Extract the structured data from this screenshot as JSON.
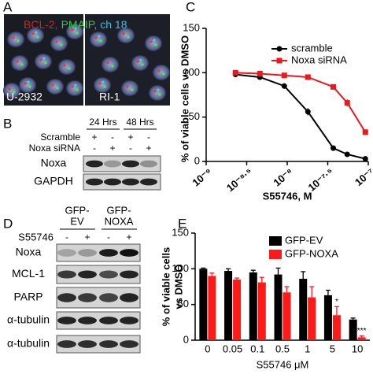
{
  "figure": {
    "A": {
      "label": "A",
      "title": [
        "BCL-2,",
        "PMAIP,",
        "ch 18"
      ],
      "images": [
        "U-2932",
        "RI-1"
      ]
    },
    "B": {
      "label": "B",
      "times": [
        "24 Hrs",
        "48 Hrs"
      ],
      "conditions": [
        {
          "name": "Scramble",
          "signs": [
            "+",
            "-",
            "+",
            "-"
          ]
        },
        {
          "name": "Noxa siRNA",
          "signs": [
            "-",
            "+",
            "-",
            "+"
          ]
        }
      ],
      "bands": [
        "Noxa",
        "GAPDH"
      ]
    },
    "D": {
      "label": "D",
      "groups": [
        [
          "GFP-",
          "EV"
        ],
        [
          "GFP-",
          "NOXA"
        ]
      ],
      "treatment": "S55746",
      "signs": [
        "-",
        "+",
        "-",
        "+"
      ],
      "bands": [
        "Noxa",
        "MCL-1",
        "PARP",
        "α-tubulin",
        "α-tubulin"
      ]
    }
  },
  "chart_data": [
    {
      "type": "line",
      "panel_label": "C",
      "ylabel": "% of viable cells vs DMSO",
      "xlabel": "S55746, M",
      "xscale": "log",
      "xlim": [
        1e-09,
        1e-07
      ],
      "xticks": [
        {
          "value": 1e-09,
          "label": "10⁻⁹"
        },
        {
          "value": 3.16227766e-09,
          "label": "10⁻⁸·⁵"
        },
        {
          "value": 1e-08,
          "label": "10⁻⁸"
        },
        {
          "value": 3.16227766e-08,
          "label": "10⁻⁷·⁵"
        },
        {
          "value": 1e-07,
          "label": "10⁻⁷"
        }
      ],
      "ylim": [
        0,
        150
      ],
      "yticks": [
        0,
        50,
        100,
        150
      ],
      "legend": "upper right",
      "x": [
        2.3e-09,
        4.6e-09,
        9.2e-09,
        1.8e-08,
        3.7e-08,
        5.5e-08,
        9.2e-08
      ],
      "series": [
        {
          "name": "scramble",
          "color": "#000000",
          "marker": "circle",
          "values": [
            98,
            95,
            85,
            56,
            15,
            8,
            3
          ],
          "errors": [
            2,
            2,
            3,
            4,
            3,
            2,
            1
          ]
        },
        {
          "name": "Noxa siRNA",
          "color": "#e8191f",
          "marker": "square",
          "values": [
            100,
            99,
            97,
            95,
            84,
            66,
            33
          ],
          "errors": [
            2,
            2,
            2,
            2,
            3,
            4,
            3
          ]
        }
      ]
    },
    {
      "type": "bar",
      "panel_label": "E",
      "ylabel": [
        "% of viable cells",
        "vs DMSO"
      ],
      "xlabel": "S55746 μM",
      "categories": [
        "0",
        "0.05",
        "0.1",
        "0.5",
        "1",
        "5",
        "10"
      ],
      "ylim": [
        0,
        150
      ],
      "yticks": [
        0,
        50,
        100,
        150
      ],
      "legend": "upper right",
      "series": [
        {
          "name": "GFP-EV",
          "color": "#000000",
          "values": [
            100,
            97,
            95,
            92,
            86,
            63,
            29
          ],
          "errors": [
            1,
            3,
            3,
            9,
            10,
            7,
            2
          ]
        },
        {
          "name": "GFP-NOXA",
          "color": "#ff1a1a",
          "values": [
            90,
            85,
            81,
            67,
            60,
            35,
            4
          ],
          "errors": [
            4,
            2,
            7,
            8,
            15,
            12,
            2
          ],
          "significance": [
            null,
            null,
            null,
            null,
            null,
            "*",
            "***"
          ]
        }
      ]
    }
  ]
}
